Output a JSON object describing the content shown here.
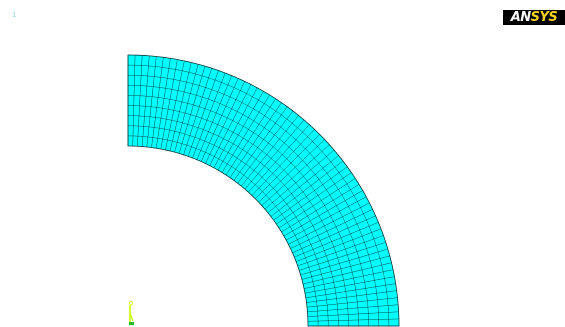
{
  "graphics_window": {
    "window_number": "1",
    "logo_text_part1": "AN",
    "logo_text_part2": "SYS"
  },
  "mesh": {
    "element_fill_color": "#00ffff",
    "element_edge_color": "#003a3a",
    "radial_divisions": 9,
    "circumferential_divisions": 60
  },
  "triad": {
    "y_axis_color": "#c8ff00",
    "z_axis_color": "#22bb22"
  }
}
